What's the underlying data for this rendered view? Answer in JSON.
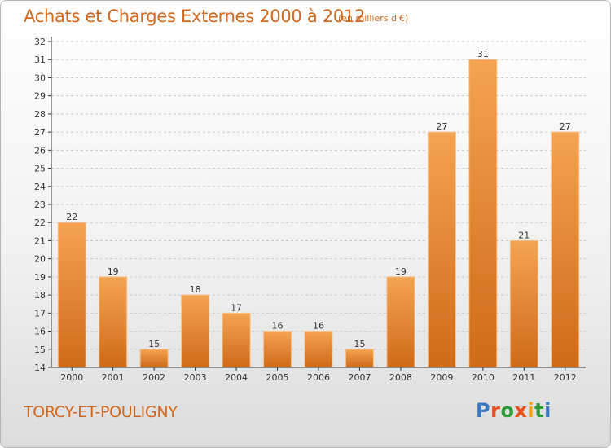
{
  "header": {
    "title": "Achats et Charges Externes 2000 à 2012",
    "subtitle": "(en milliers d'€)"
  },
  "footer": {
    "place_name": "TORCY-ET-POULIGNY",
    "logo_text": "Proxiti",
    "logo_colors": [
      "#3a78c2",
      "#e8501e",
      "#2f9a3a",
      "#e8501e",
      "#f0a020",
      "#2f9a3a",
      "#3a78c2"
    ]
  },
  "colors": {
    "bar_top": "#f4a451",
    "bar_bottom": "#cf6a18",
    "bar_stroke": "#f7c08a",
    "text_accent": "#d2691e",
    "axis": "#333333",
    "grid": "#c9c9c9"
  },
  "chart_data": {
    "type": "bar",
    "categories": [
      "2000",
      "2001",
      "2002",
      "2003",
      "2004",
      "2005",
      "2006",
      "2007",
      "2008",
      "2009",
      "2010",
      "2011",
      "2012"
    ],
    "values": [
      22,
      19,
      15,
      18,
      17,
      16,
      16,
      15,
      19,
      27,
      31,
      21,
      27
    ],
    "data_labels": [
      "22",
      "19",
      "15",
      "18",
      "17",
      "16",
      "16",
      "15",
      "19",
      "27",
      "31",
      "21",
      "27"
    ],
    "yticks": [
      "14",
      "15",
      "16",
      "17",
      "18",
      "19",
      "20",
      "21",
      "22",
      "23",
      "24",
      "25",
      "26",
      "27",
      "28",
      "29",
      "30",
      "31",
      "32"
    ],
    "ylim": [
      14,
      32
    ],
    "grid": "horizontal dashed"
  }
}
